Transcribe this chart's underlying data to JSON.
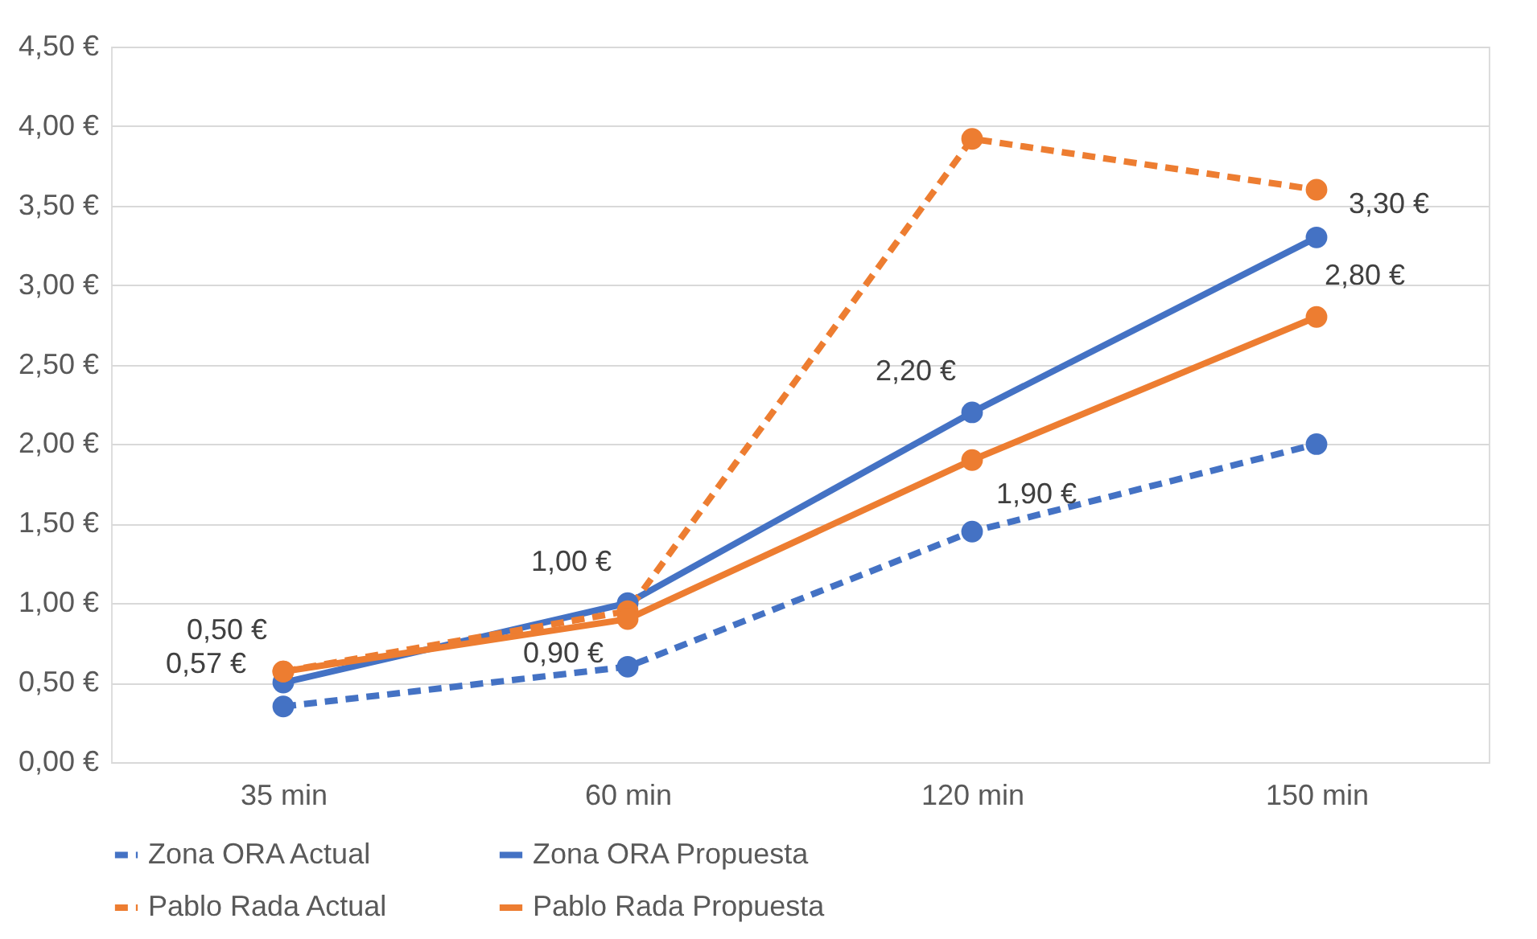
{
  "chart_data": {
    "type": "line",
    "categories": [
      "35 min",
      "60 min",
      "120 min",
      "150 min"
    ],
    "series": [
      {
        "name": "Zona ORA Actual",
        "color": "#4472c4",
        "line_style": "dashed",
        "values": [
          0.35,
          0.6,
          1.45,
          2.0
        ]
      },
      {
        "name": "Zona ORA Propuesta",
        "color": "#4472c4",
        "line_style": "solid",
        "values": [
          0.5,
          1.0,
          2.2,
          3.3
        ],
        "value_labels": [
          "0,50 €",
          "1,00 €",
          "2,20 €",
          "3,30 €"
        ]
      },
      {
        "name": "Pablo Rada Actual",
        "color": "#ed7d31",
        "line_style": "dashed",
        "values": [
          0.57,
          0.95,
          3.92,
          3.6
        ]
      },
      {
        "name": "Pablo Rada Propuesta",
        "color": "#ed7d31",
        "line_style": "solid",
        "values": [
          0.57,
          0.9,
          1.9,
          2.8
        ],
        "value_labels": [
          "0,57 €",
          "0,90 €",
          "1,90 €",
          "2,80 €"
        ]
      }
    ],
    "ylim": [
      0,
      4.5
    ],
    "yticks": [
      {
        "value": 0,
        "label": "0,00 €"
      },
      {
        "value": 0.5,
        "label": "0,50 €"
      },
      {
        "value": 1,
        "label": "1,00 €"
      },
      {
        "value": 1.5,
        "label": "1,50 €"
      },
      {
        "value": 2,
        "label": "2,00 €"
      },
      {
        "value": 2.5,
        "label": "2,50 €"
      },
      {
        "value": 3,
        "label": "3,00 €"
      },
      {
        "value": 3.5,
        "label": "3,50 €"
      },
      {
        "value": 4,
        "label": "4,00 €"
      },
      {
        "value": 4.5,
        "label": "4,50 €"
      }
    ],
    "grid": "y",
    "legend": "bottom",
    "marker": "circle"
  }
}
